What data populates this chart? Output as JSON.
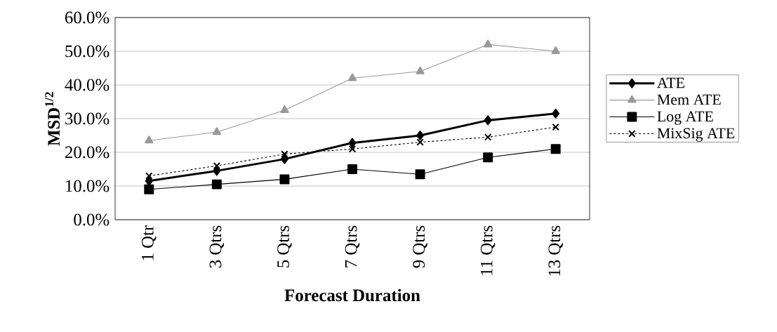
{
  "chart_data": {
    "type": "line",
    "xlabel": "Forecast Duration",
    "ylabel": "MSD$^{1/2}$",
    "categories": [
      "1 Qtr",
      "3 Qtrs",
      "5 Qtrs",
      "7 Qtrs",
      "9 Qtrs",
      "11 Qtrs",
      "13 Qtrs"
    ],
    "series": [
      {
        "name": "ATE",
        "color": "#000000",
        "marker": "diamond",
        "line_style": "solid",
        "values": [
          11.5,
          14.5,
          18,
          22.8,
          25,
          29.5,
          31.5
        ]
      },
      {
        "name": "Mem ATE",
        "color": "#999999",
        "marker": "triangle",
        "line_style": "solid",
        "values": [
          23.5,
          26,
          32.5,
          42,
          44,
          52,
          50
        ]
      },
      {
        "name": "Log ATE",
        "color": "#000000",
        "marker": "square",
        "line_style": "solid",
        "values": [
          9,
          10.5,
          12,
          15,
          13.5,
          18.5,
          21
        ]
      },
      {
        "name": "MixSig ATE",
        "color": "#000000",
        "marker": "cross",
        "line_style": "dashed",
        "values": [
          13,
          16,
          19.5,
          21,
          23,
          24.5,
          27.5
        ]
      }
    ],
    "ylim": [
      0,
      60
    ],
    "yticks": [
      {
        "value": 0,
        "label": "0.0%"
      },
      {
        "value": 10,
        "label": "10.0%"
      },
      {
        "value": 20,
        "label": "20.0%"
      },
      {
        "value": 30,
        "label": "30.0%"
      },
      {
        "value": 40,
        "label": "40.0%"
      },
      {
        "value": 50,
        "label": "50.0%"
      },
      {
        "value": 60,
        "label": "60.0%"
      }
    ],
    "grid": "y",
    "legend": "right"
  }
}
